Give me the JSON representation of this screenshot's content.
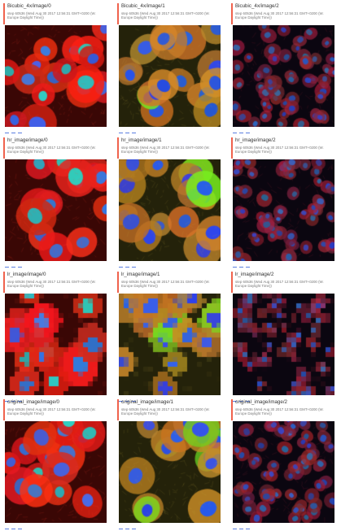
{
  "step_text": "step 60536 (Wed Aug 30 2017 12:56:31 GMT+0200 (W. Europe Daylight Time))",
  "colors": {
    "header_border": "#f0624d",
    "footer_controls": "#5b7fe0"
  },
  "rows": [
    {
      "prefix": "Bicubic_4x",
      "cards": [
        {
          "title": "Bicubic_4x/image/0",
          "style": "red"
        },
        {
          "title": "Bicubic_4x/image/1",
          "style": "green"
        },
        {
          "title": "Bicubic_4x/image/2",
          "style": "dark"
        }
      ]
    },
    {
      "prefix": "hr_image",
      "cards": [
        {
          "title": "hr_image/image/0",
          "style": "red"
        },
        {
          "title": "hr_image/image/1",
          "style": "green"
        },
        {
          "title": "hr_image/image/2",
          "style": "dark"
        }
      ]
    },
    {
      "prefix": "lr_image",
      "cards": [
        {
          "title": "lr_image/image/0",
          "style": "red-pixel"
        },
        {
          "title": "lr_image/image/1",
          "style": "green-pixel"
        },
        {
          "title": "lr_image/image/2",
          "style": "dark-pixel"
        }
      ]
    },
    {
      "prefix": "original_image",
      "cards": [
        {
          "title": "original_image/image/0",
          "style": "red"
        },
        {
          "title": "original_image/image/1",
          "style": "green"
        },
        {
          "title": "original_image/image/2",
          "style": "dark"
        }
      ]
    }
  ]
}
